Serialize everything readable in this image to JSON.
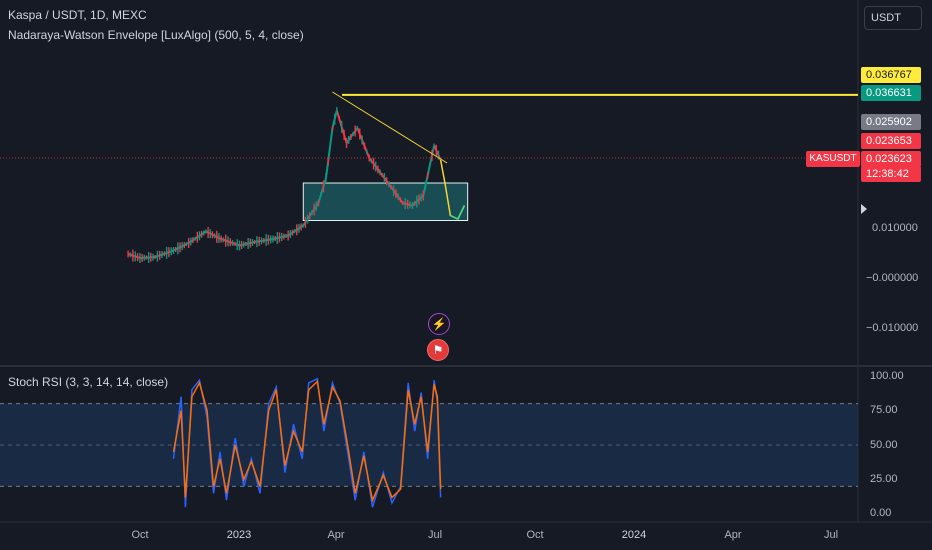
{
  "header": {
    "title": "Kaspa / USDT, 1D, MEXC",
    "indicator": "Nadaraya-Watson Envelope [LuxAlgo] (500, 5, 4, close)",
    "rsi_title": "Stoch RSI (3, 3, 14, 14, close)",
    "currency": "USDT"
  },
  "price_tags": {
    "high_line": "0.036767",
    "resistance": "0.036631",
    "envelope_upper": "0.025902",
    "close_alt": "0.023653",
    "last_price": "0.023623",
    "countdown": "12:38:42",
    "symbol": "KASUSDT"
  },
  "colors": {
    "background": "#161a25",
    "high_line": "#ffeb3b",
    "resistance": "#089981",
    "envelope_upper": "#787b86",
    "last_price": "#f23645",
    "candle_up": "#089981",
    "candle_down": "#f23645",
    "trendline": "#f2d535",
    "projection": "#f2d535",
    "projection_curve": "#3ddc84",
    "rsi_k": "#2962ff",
    "rsi_d": "#ff6d00",
    "rsi_band": "#1e3a5f"
  },
  "price_axis": [
    "0.010000",
    "−0.000000",
    "−0.010000"
  ],
  "rsi_axis": [
    "100.00",
    "75.00",
    "50.00",
    "25.00",
    "0.00"
  ],
  "time_axis": [
    {
      "label": "Oct",
      "strong": false
    },
    {
      "label": "2023",
      "strong": true
    },
    {
      "label": "Apr",
      "strong": false
    },
    {
      "label": "Jul",
      "strong": false
    },
    {
      "label": "Oct",
      "strong": false
    },
    {
      "label": "2024",
      "strong": true
    },
    {
      "label": "Apr",
      "strong": false
    },
    {
      "label": "Jul",
      "strong": false
    }
  ],
  "events": {
    "first": "bolt-icon",
    "second": "us-flag-icon"
  },
  "chart_data": {
    "type": "candlestick",
    "title": "Kaspa / USDT, 1D, MEXC",
    "price_levels": [
      0.036767,
      0.036631,
      0.025902,
      0.023653,
      0.023623
    ],
    "price_range": [
      -0.014,
      0.046
    ],
    "price_series": [
      [
        "2022-09-20",
        0.0048
      ],
      [
        "2022-10-01",
        0.004
      ],
      [
        "2022-10-15",
        0.0042
      ],
      [
        "2022-11-01",
        0.0055
      ],
      [
        "2022-11-15",
        0.007
      ],
      [
        "2022-12-01",
        0.0093
      ],
      [
        "2022-12-15",
        0.0078
      ],
      [
        "2023-01-01",
        0.0065
      ],
      [
        "2023-01-15",
        0.0072
      ],
      [
        "2023-02-01",
        0.0078
      ],
      [
        "2023-02-15",
        0.0085
      ],
      [
        "2023-03-01",
        0.0105
      ],
      [
        "2023-03-15",
        0.015
      ],
      [
        "2023-03-22",
        0.02
      ],
      [
        "2023-03-28",
        0.03
      ],
      [
        "2023-04-01",
        0.0335
      ],
      [
        "2023-04-10",
        0.027
      ],
      [
        "2023-04-20",
        0.03
      ],
      [
        "2023-05-01",
        0.024
      ],
      [
        "2023-05-15",
        0.02
      ],
      [
        "2023-06-01",
        0.015
      ],
      [
        "2023-06-10",
        0.0145
      ],
      [
        "2023-06-20",
        0.0165
      ],
      [
        "2023-06-30",
        0.0265
      ],
      [
        "2023-07-06",
        0.0236
      ]
    ],
    "projection_series": [
      [
        "2023-07-06",
        0.0236
      ],
      [
        "2023-07-10",
        0.019
      ],
      [
        "2023-07-15",
        0.0125
      ],
      [
        "2023-07-22",
        0.0118
      ],
      [
        "2023-07-28",
        0.0145
      ]
    ],
    "trendline": [
      [
        "2023-03-28",
        0.036
      ],
      [
        "2023-07-12",
        0.023
      ]
    ],
    "zone": {
      "from": "2023-03-01",
      "to": "2023-07-31",
      "low": 0.0115,
      "high": 0.019
    },
    "stoch_rsi": {
      "range": [
        0,
        100
      ],
      "band": [
        20,
        80
      ],
      "k": [
        [
          "2022-11-01",
          40
        ],
        [
          "2022-11-08",
          85
        ],
        [
          "2022-11-12",
          5
        ],
        [
          "2022-11-18",
          90
        ],
        [
          "2022-11-25",
          97
        ],
        [
          "2022-12-02",
          70
        ],
        [
          "2022-12-08",
          15
        ],
        [
          "2022-12-14",
          45
        ],
        [
          "2022-12-20",
          10
        ],
        [
          "2022-12-28",
          55
        ],
        [
          "2023-01-05",
          20
        ],
        [
          "2023-01-12",
          40
        ],
        [
          "2023-01-20",
          15
        ],
        [
          "2023-01-28",
          80
        ],
        [
          "2023-02-04",
          92
        ],
        [
          "2023-02-12",
          30
        ],
        [
          "2023-02-20",
          65
        ],
        [
          "2023-02-28",
          40
        ],
        [
          "2023-03-06",
          95
        ],
        [
          "2023-03-14",
          98
        ],
        [
          "2023-03-20",
          60
        ],
        [
          "2023-03-28",
          95
        ],
        [
          "2023-04-04",
          80
        ],
        [
          "2023-04-12",
          40
        ],
        [
          "2023-04-18",
          10
        ],
        [
          "2023-04-26",
          45
        ],
        [
          "2023-05-04",
          5
        ],
        [
          "2023-05-14",
          30
        ],
        [
          "2023-05-22",
          8
        ],
        [
          "2023-05-30",
          20
        ],
        [
          "2023-06-06",
          95
        ],
        [
          "2023-06-12",
          60
        ],
        [
          "2023-06-18",
          88
        ],
        [
          "2023-06-24",
          40
        ],
        [
          "2023-06-30",
          97
        ],
        [
          "2023-07-03",
          80
        ],
        [
          "2023-07-06",
          12
        ]
      ],
      "d": [
        [
          "2022-11-01",
          45
        ],
        [
          "2022-11-08",
          75
        ],
        [
          "2022-11-12",
          12
        ],
        [
          "2022-11-18",
          85
        ],
        [
          "2022-11-25",
          95
        ],
        [
          "2022-12-02",
          75
        ],
        [
          "2022-12-08",
          20
        ],
        [
          "2022-12-14",
          40
        ],
        [
          "2022-12-20",
          15
        ],
        [
          "2022-12-28",
          50
        ],
        [
          "2023-01-05",
          25
        ],
        [
          "2023-01-12",
          38
        ],
        [
          "2023-01-20",
          20
        ],
        [
          "2023-01-28",
          75
        ],
        [
          "2023-02-04",
          90
        ],
        [
          "2023-02-12",
          35
        ],
        [
          "2023-02-20",
          60
        ],
        [
          "2023-02-28",
          45
        ],
        [
          "2023-03-06",
          90
        ],
        [
          "2023-03-14",
          96
        ],
        [
          "2023-03-20",
          65
        ],
        [
          "2023-03-28",
          92
        ],
        [
          "2023-04-04",
          82
        ],
        [
          "2023-04-12",
          45
        ],
        [
          "2023-04-18",
          15
        ],
        [
          "2023-04-26",
          42
        ],
        [
          "2023-05-04",
          10
        ],
        [
          "2023-05-14",
          28
        ],
        [
          "2023-05-22",
          12
        ],
        [
          "2023-05-30",
          18
        ],
        [
          "2023-06-06",
          90
        ],
        [
          "2023-06-12",
          65
        ],
        [
          "2023-06-18",
          85
        ],
        [
          "2023-06-24",
          45
        ],
        [
          "2023-06-30",
          94
        ],
        [
          "2023-07-03",
          85
        ],
        [
          "2023-07-06",
          18
        ]
      ]
    },
    "axes": {
      "price_ticks": [
        0.01,
        0.0,
        -0.01
      ],
      "rsi_ticks": [
        100,
        75,
        50,
        25,
        0
      ],
      "time_ticks": [
        "Oct",
        "2023",
        "Apr",
        "Jul",
        "Oct",
        "2024",
        "Apr",
        "Jul"
      ]
    },
    "grid": true,
    "legend": "top-left"
  }
}
